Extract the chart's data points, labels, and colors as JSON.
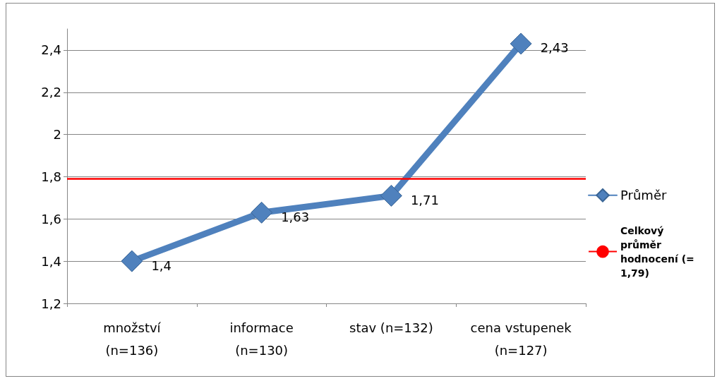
{
  "chart_data": {
    "type": "line",
    "categories": [
      "množství\n(n=136)",
      "informace\n(n=130)",
      "stav (n=132)",
      "cena vstupenek\n(n=127)"
    ],
    "series": [
      {
        "name": "Průměr",
        "color": "#4f81bd",
        "values": [
          1.4,
          1.63,
          1.71,
          2.43
        ],
        "value_labels": [
          "1,4",
          "1,63",
          "1,71",
          "2,43"
        ]
      }
    ],
    "ylim": [
      1.2,
      2.5
    ],
    "yticks": [
      {
        "value": 1.2,
        "label": "1,2"
      },
      {
        "value": 1.4,
        "label": "1,4"
      },
      {
        "value": 1.6,
        "label": "1,6"
      },
      {
        "value": 1.8,
        "label": "1,8"
      },
      {
        "value": 2,
        "label": "2"
      },
      {
        "value": 2.2,
        "label": "2,2"
      },
      {
        "value": 2.4,
        "label": "2,4"
      }
    ],
    "ref_lines": [
      {
        "axis": "y",
        "value": 1.79,
        "label": "Celkový průměr hodnocení (= 1,79)",
        "color": "#ff0000"
      }
    ],
    "grid": "y",
    "legend": "right",
    "marker": "diamond",
    "line_style": "solid"
  }
}
